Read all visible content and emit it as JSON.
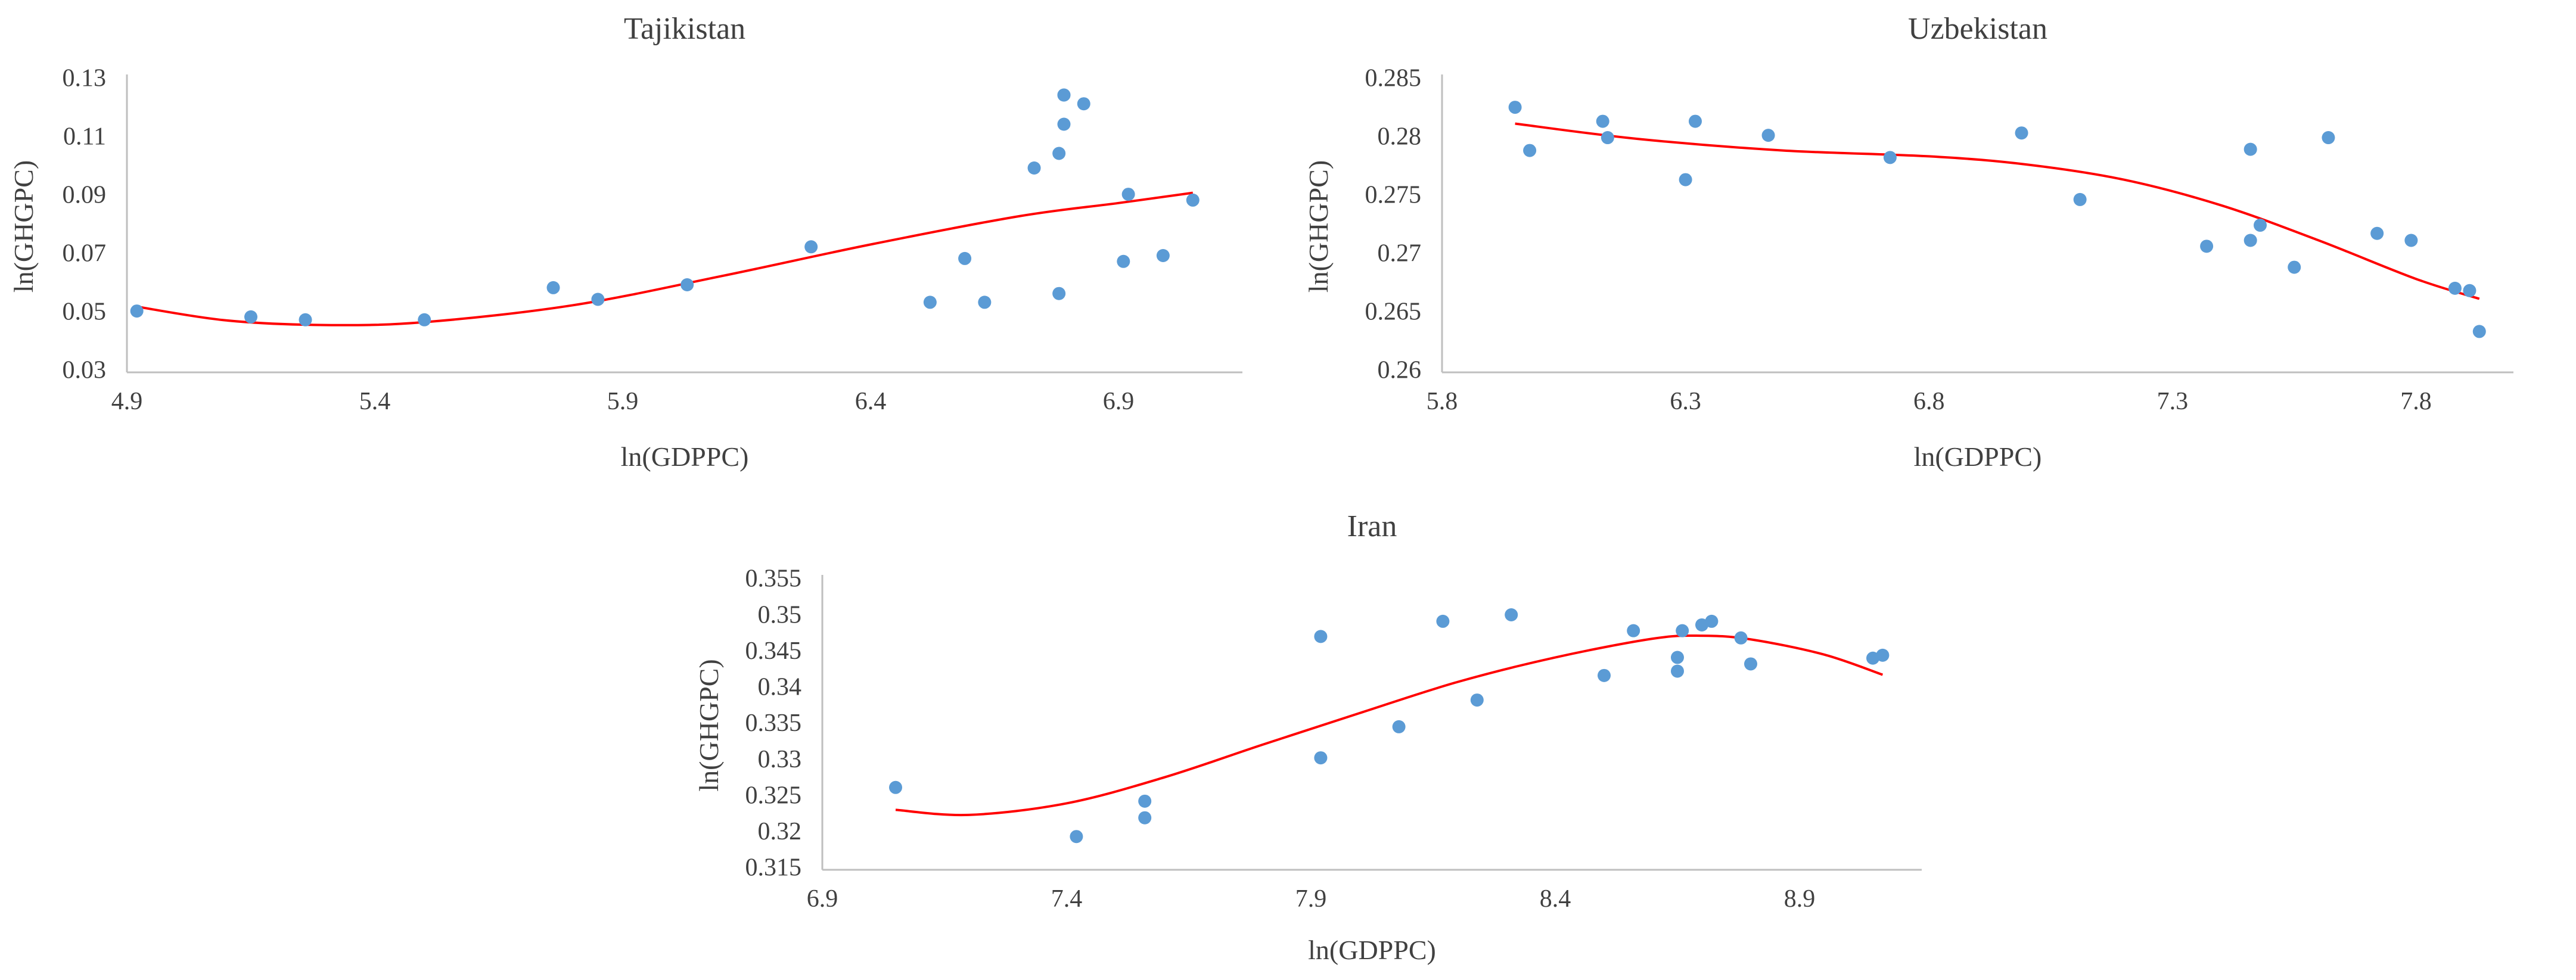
{
  "chart_data": [
    {
      "type": "scatter",
      "title": "Tajikistan",
      "xlabel": "ln(GDPPC)",
      "ylabel": "ln(GHGPC)",
      "xlim": [
        4.9,
        7.15
      ],
      "ylim": [
        0.03,
        0.13
      ],
      "xticks": [
        4.9,
        5.4,
        5.9,
        6.4,
        6.9
      ],
      "xtick_labels": [
        "4.9",
        "5.4",
        "5.9",
        "6.4",
        "6.9"
      ],
      "yticks": [
        0.03,
        0.05,
        0.07,
        0.09,
        0.11,
        0.13
      ],
      "ytick_labels": [
        "0.03",
        "0.05",
        "0.07",
        "0.09",
        "0.11",
        "0.13"
      ],
      "colors": {
        "points": "#5b9bd5",
        "trend": "#ff0000"
      },
      "series": [
        {
          "name": "observations",
          "kind": "scatter",
          "x": [
            4.92,
            5.15,
            5.26,
            5.5,
            5.76,
            5.85,
            6.03,
            6.28,
            6.52,
            6.59,
            6.63,
            6.73,
            6.78,
            6.78,
            6.79,
            6.79,
            6.79,
            6.83,
            6.91,
            6.92,
            6.99,
            7.05
          ],
          "y": [
            0.051,
            0.049,
            0.048,
            0.048,
            0.059,
            0.055,
            0.06,
            0.073,
            0.054,
            0.069,
            0.054,
            0.1,
            0.057,
            0.105,
            0.115,
            0.125,
            0.125,
            0.122,
            0.068,
            0.091,
            0.07,
            0.089
          ]
        },
        {
          "name": "polynomial trend",
          "kind": "line",
          "x": [
            4.92,
            5.1,
            5.3,
            5.5,
            5.8,
            6.1,
            6.4,
            6.7,
            6.9,
            7.05
          ],
          "y": [
            0.0525,
            0.0478,
            0.0462,
            0.0472,
            0.053,
            0.063,
            0.0738,
            0.0835,
            0.088,
            0.0915
          ]
        }
      ]
    },
    {
      "type": "scatter",
      "title": "Uzbekistan",
      "xlabel": "ln(GDPPC)",
      "ylabel": "ln(GHGPC)",
      "xlim": [
        5.8,
        8.0
      ],
      "ylim": [
        0.26,
        0.285
      ],
      "xticks": [
        5.8,
        6.3,
        6.8,
        7.3,
        7.8
      ],
      "xtick_labels": [
        "5.8",
        "6.3",
        "6.8",
        "7.3",
        "7.8"
      ],
      "yticks": [
        0.26,
        0.265,
        0.27,
        0.275,
        0.28,
        0.285
      ],
      "ytick_labels": [
        "0.26",
        "0.265",
        "0.27",
        "0.275",
        "0.28",
        "0.285"
      ],
      "colors": {
        "points": "#5b9bd5",
        "trend": "#ff0000"
      },
      "series": [
        {
          "name": "observations",
          "kind": "scatter",
          "x": [
            5.95,
            5.98,
            6.13,
            6.14,
            6.3,
            6.32,
            6.47,
            6.72,
            6.99,
            7.11,
            7.37,
            7.46,
            7.46,
            7.48,
            7.55,
            7.62,
            7.72,
            7.79,
            7.88,
            7.91,
            7.93
          ],
          "y": [
            0.2827,
            0.279,
            0.2815,
            0.2801,
            0.2765,
            0.2815,
            0.2803,
            0.2784,
            0.2805,
            0.2748,
            0.2708,
            0.2713,
            0.2791,
            0.2726,
            0.269,
            0.2801,
            0.2719,
            0.2713,
            0.2672,
            0.267,
            0.2635
          ]
        },
        {
          "name": "polynomial trend",
          "kind": "line",
          "x": [
            5.95,
            6.2,
            6.5,
            6.8,
            7.0,
            7.2,
            7.4,
            7.6,
            7.8,
            7.93
          ],
          "y": [
            0.2813,
            0.28,
            0.279,
            0.2785,
            0.2778,
            0.2765,
            0.2743,
            0.2713,
            0.268,
            0.2663
          ]
        }
      ]
    },
    {
      "type": "scatter",
      "title": "Iran",
      "xlabel": "ln(GDPPC)",
      "ylabel": "ln(GHGPC)",
      "xlim": [
        6.9,
        9.15
      ],
      "ylim": [
        0.315,
        0.355
      ],
      "xticks": [
        6.9,
        7.4,
        7.9,
        8.4,
        8.9
      ],
      "xtick_labels": [
        "6.9",
        "7.4",
        "7.9",
        "8.4",
        "8.9"
      ],
      "yticks": [
        0.315,
        0.32,
        0.325,
        0.33,
        0.335,
        0.34,
        0.345,
        0.35,
        0.355
      ],
      "ytick_labels": [
        "0.315",
        "0.32",
        "0.325",
        "0.33",
        "0.335",
        "0.34",
        "0.345",
        "0.35",
        "0.355"
      ],
      "colors": {
        "points": "#5b9bd5",
        "trend": "#ff0000"
      },
      "series": [
        {
          "name": "observations",
          "kind": "scatter",
          "x": [
            7.05,
            7.42,
            7.56,
            7.56,
            7.92,
            7.92,
            8.08,
            8.17,
            8.24,
            8.31,
            8.5,
            8.56,
            8.65,
            8.65,
            8.66,
            8.7,
            8.72,
            8.78,
            8.8,
            9.05,
            9.07
          ],
          "y": [
            0.3264,
            0.3196,
            0.3222,
            0.3245,
            0.3473,
            0.3305,
            0.3348,
            0.3494,
            0.3385,
            0.3503,
            0.3419,
            0.3481,
            0.3425,
            0.3444,
            0.3481,
            0.3489,
            0.3494,
            0.3471,
            0.3435,
            0.3443,
            0.3447
          ]
        },
        {
          "name": "polynomial trend",
          "kind": "line",
          "x": [
            7.05,
            7.2,
            7.4,
            7.6,
            7.8,
            8.0,
            8.2,
            8.4,
            8.6,
            8.7,
            8.8,
            8.95,
            9.07
          ],
          "y": [
            0.3233,
            0.3226,
            0.3242,
            0.3278,
            0.3323,
            0.3367,
            0.341,
            0.3444,
            0.347,
            0.3474,
            0.3469,
            0.3448,
            0.342
          ]
        }
      ]
    }
  ]
}
